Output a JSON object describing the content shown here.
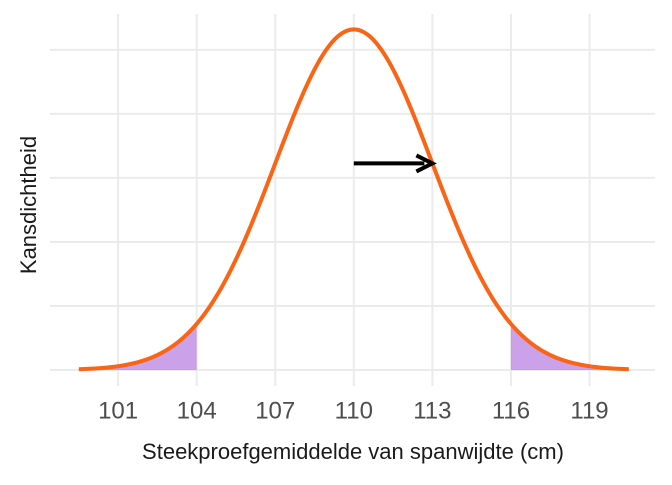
{
  "chart_data": {
    "type": "density",
    "x_label": "Steekproefgemiddelde van spanwijdte (cm)",
    "y_label": "Kansdichtheid",
    "mean": 110,
    "sd": 3,
    "x_range": [
      99.5,
      120.5
    ],
    "shade_below": 104,
    "shade_above": 116,
    "arrow": [
      110,
      113
    ],
    "color": "#fa6414",
    "shade_color": "#b57ae0",
    "arrow_color": "#000000",
    "xlim": [
      98.4,
      121.5
    ],
    "xticks": [
      101,
      104,
      107,
      110,
      113,
      116,
      119
    ],
    "ylim": [
      -0.00625,
      0.139
    ],
    "yticks": [
      0,
      0.025,
      0.05,
      0.075,
      0.1,
      0.125
    ],
    "ytick_labels": false,
    "grid": true
  }
}
